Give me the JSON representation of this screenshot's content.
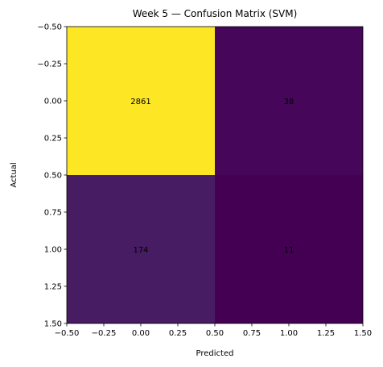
{
  "chart_data": {
    "type": "heatmap",
    "title": "Week 5 — Confusion Matrix (SVM)",
    "xlabel": "Predicted",
    "ylabel": "Actual",
    "xlim": [
      -0.5,
      1.5
    ],
    "ylim": [
      1.5,
      -0.5
    ],
    "xticks": [
      -0.5,
      -0.25,
      0,
      0.25,
      0.5,
      0.75,
      1,
      1.25,
      1.5
    ],
    "yticks": [
      -0.5,
      -0.25,
      0,
      0.25,
      0.5,
      0.75,
      1,
      1.25,
      1.5
    ],
    "xtick_labels": [
      "−0.50",
      "−0.25",
      "0.00",
      "0.25",
      "0.50",
      "0.75",
      "1.00",
      "1.25",
      "1.50"
    ],
    "ytick_labels": [
      "−0.50",
      "−0.25",
      "0.00",
      "0.25",
      "0.50",
      "0.75",
      "1.00",
      "1.25",
      "1.50"
    ],
    "matrix": [
      [
        2861,
        38
      ],
      [
        174,
        11
      ]
    ],
    "colors": [
      [
        "#fde725",
        "#46075a"
      ],
      [
        "#471c62",
        "#440154"
      ]
    ],
    "grid": false,
    "colormap": "viridis"
  }
}
